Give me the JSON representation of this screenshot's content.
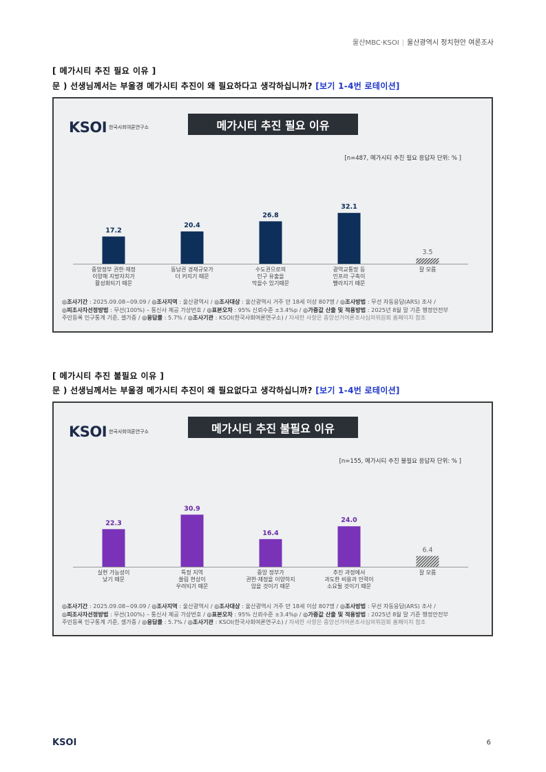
{
  "header": {
    "org": "울산MBC·KSOI",
    "sep": "|",
    "survey": "울산광역시 정치현안 여론조사"
  },
  "sections": [
    {
      "title": "[ 메가시티 추진 필요 이유 ]",
      "question_prefix": "문 )  선생님께서는 부울경 메가시티 추진이 왜 필요하다고 생각하십니까?",
      "rotation": "[보기 1-4번 로테이션]",
      "figure": {
        "logo": "KSOI",
        "logo_sub": "한국사회여론연구소",
        "title": "메가시티 추진 필요 이유",
        "sample": "[n=487, 메가시티 추진 필요 응답자 단위: % ]",
        "notes": {
          "l1a": "◎조사기간",
          "l1b": " : 2025.09.08~09.09 / ",
          "l1c": "◎조사지역",
          "l1d": " : 울산광역시 / ",
          "l1e": "◎조사대상",
          "l1f": " : 울산광역시 거주 만 18세 이상 807명 / ",
          "l1g": "◎조사방법",
          "l1h": " : 무선 자동응답(ARS) 조사 /",
          "l2a": "◎피조사자선정방법",
          "l2b": " : 무선(100%) – 통신사 제공 가상번호 / ",
          "l2c": "◎표본오차",
          "l2d": " : 95% 신뢰수준 ±3.4%p / ",
          "l2e": "◎가중값 산출 및 적용방법",
          "l2f": " : 2025년 8월 말 기준 행정안전부",
          "l3a": "주민등록 인구통계 기준, 셀가중 / ",
          "l3b": "◎응답률",
          "l3c": " : 5.7% / ",
          "l3d": "◎조사기관",
          "l3e": " : KSOI(한국사회여론연구소) / ",
          "l3f": "자세한 사항은 중앙선거여론조사심의위원회 홈페이지 참조"
        }
      }
    },
    {
      "title": "[ 메가시티 추진 불필요 이유 ]",
      "question_prefix": "문 )  선생님께서는 부울경 메가시티 추진이 왜 필요없다고 생각하십니까?",
      "rotation": "[보기 1-4번 로테이션]",
      "figure": {
        "logo": "KSOI",
        "logo_sub": "한국사회여론연구소",
        "title": "메가시티 추진 불필요 이유",
        "sample": "[n=155, 메가시티 추진 불필요 응답자 단위: % ]",
        "notes": {
          "l1a": "◎조사기간",
          "l1b": " : 2025.09.08~09.09 / ",
          "l1c": "◎조사지역",
          "l1d": " : 울산광역시 / ",
          "l1e": "◎조사대상",
          "l1f": " : 울산광역시 거주 만 18세 이상 807명 / ",
          "l1g": "◎조사방법",
          "l1h": " : 무선 자동응답(ARS) 조사 /",
          "l2a": "◎피조사자선정방법",
          "l2b": " : 무선(100%) – 통신사 제공 가상번호 / ",
          "l2c": "◎표본오차",
          "l2d": " : 95% 신뢰수준 ±3.4%p / ",
          "l2e": "◎가중값 산출 및 적용방법",
          "l2f": " : 2025년 8월 말 기준 행정안전부",
          "l3a": "주민등록 인구통계 기준, 셀가중 / ",
          "l3b": "◎응답률",
          "l3c": " : 5.7% / ",
          "l3d": "◎조사기관",
          "l3e": " : KSOI(한국사회여론연구소) / ",
          "l3f": "자세한 사항은 중앙선거여론조사심의위원회 홈페이지 참조"
        }
      }
    }
  ],
  "chart_data": [
    {
      "type": "bar",
      "title": "메가시티 추진 필요 이유",
      "ylim": [
        0,
        40
      ],
      "categories": [
        [
          "중앙정부 권한·재정",
          "이양해 지방자치가",
          "활성화되기 때문"
        ],
        [
          "동남권 경제규모가",
          "더 커지기 때문"
        ],
        [
          "수도권으로의",
          "인구 유출을",
          "막을수 있기때문"
        ],
        [
          "광역교통망 등",
          "인프라 구축이",
          "빨라지기 때문"
        ],
        [
          "잘 모름"
        ]
      ],
      "values": [
        17.2,
        20.4,
        26.8,
        32.1,
        3.5
      ],
      "bar_color": "#0d2f5a",
      "hatched_last": true
    },
    {
      "type": "bar",
      "title": "메가시티 추진 불필요 이유",
      "ylim": [
        0,
        40
      ],
      "categories": [
        [
          "실현 가능성이",
          "낮기 때문"
        ],
        [
          "특정 지역",
          "쏠림 현상이",
          "우려되기 때문"
        ],
        [
          "중앙 정부가",
          "권한·재정을 이양하지",
          "않을 것이기 때문"
        ],
        [
          "추진 과정에서",
          "과도한 비용과 인력이",
          "소요될 것이기 때문"
        ],
        [
          "잘 모름"
        ]
      ],
      "values": [
        22.3,
        30.9,
        16.4,
        24.0,
        6.4
      ],
      "bar_color": "#7a33b8",
      "hatched_last": true
    }
  ],
  "footer": {
    "logo": "KSOI",
    "page": "6"
  }
}
